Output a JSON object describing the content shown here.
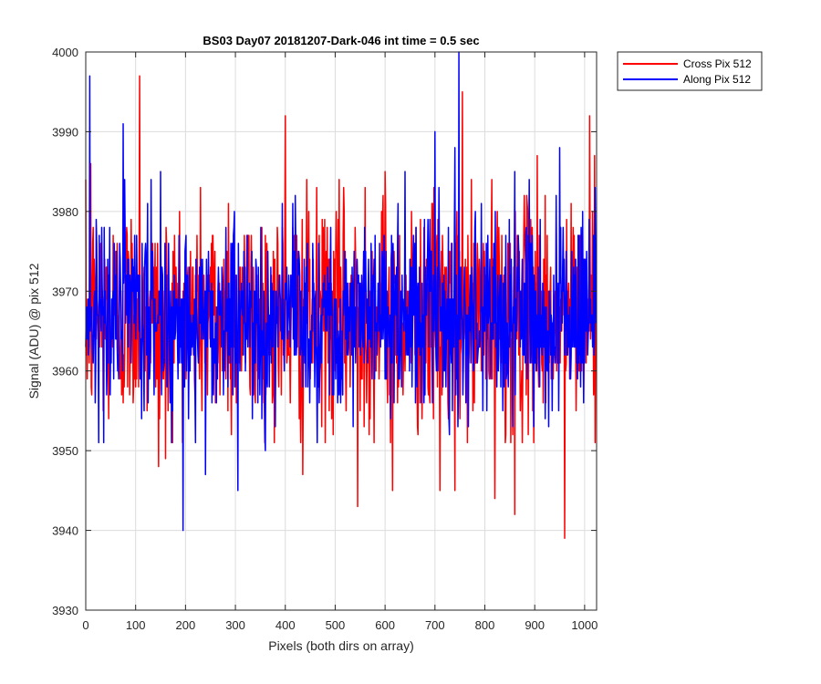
{
  "chart_data": {
    "type": "line",
    "title": "BS03 Day07 20181207-Dark-046 int time = 0.5 sec",
    "xlabel": "Pixels (both dirs on array)",
    "ylabel": "Signal (ADU) @ pix 512",
    "xlim": [
      0,
      1024
    ],
    "ylim": [
      3930,
      4000
    ],
    "xticks": [
      0,
      100,
      200,
      300,
      400,
      500,
      600,
      700,
      800,
      900,
      1000
    ],
    "yticks": [
      3930,
      3940,
      3950,
      3960,
      3970,
      3980,
      3990,
      4000
    ],
    "grid": true,
    "legend_position": "outside-top-right",
    "n_points": 1024,
    "series": [
      {
        "name": "Cross Pix 512",
        "color": "#ff0000",
        "mean": 3967,
        "spread": 7,
        "notable_points": [
          [
            10,
            3986
          ],
          [
            108,
            3997
          ],
          [
            146,
            3948
          ],
          [
            160,
            3949
          ],
          [
            286,
            3981
          ],
          [
            400,
            3992
          ],
          [
            435,
            3947
          ],
          [
            545,
            3943
          ],
          [
            560,
            3983
          ],
          [
            600,
            3985
          ],
          [
            615,
            3945
          ],
          [
            710,
            3945
          ],
          [
            740,
            3945
          ],
          [
            755,
            3995
          ],
          [
            820,
            3944
          ],
          [
            860,
            3942
          ],
          [
            905,
            3987
          ],
          [
            960,
            3939
          ],
          [
            1010,
            3992
          ],
          [
            1020,
            3987
          ]
        ]
      },
      {
        "name": "Along Pix 512",
        "color": "#0000ff",
        "mean": 3967,
        "spread": 6,
        "notable_points": [
          [
            8,
            3997
          ],
          [
            75,
            3991
          ],
          [
            150,
            3985
          ],
          [
            195,
            3940
          ],
          [
            240,
            3947
          ],
          [
            305,
            3945
          ],
          [
            360,
            3950
          ],
          [
            640,
            3985
          ],
          [
            700,
            3990
          ],
          [
            740,
            3988
          ],
          [
            748,
            4000
          ],
          [
            860,
            3985
          ],
          [
            950,
            3988
          ]
        ]
      }
    ]
  }
}
